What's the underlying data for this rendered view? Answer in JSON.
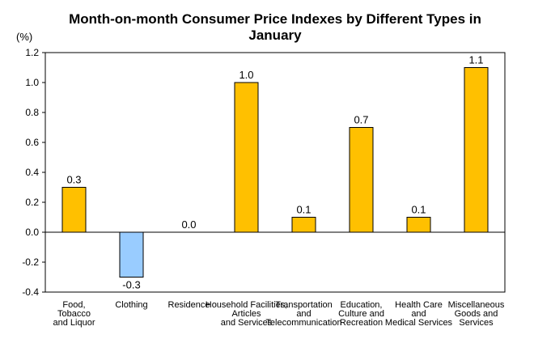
{
  "chart_data": {
    "type": "bar",
    "title": "Month-on-month Consumer Price Indexes by Different Types in\nJanuary",
    "ylabel": "(%)",
    "xlabel": "",
    "ylim": [
      -0.4,
      1.2
    ],
    "yticks": [
      "1.2",
      "1.0",
      "0.8",
      "0.6",
      "0.4",
      "0.2",
      "0.0",
      "-0.2",
      "-0.4"
    ],
    "categories": [
      "Food,\nTobacco\nand Liquor",
      "Clothing",
      "Residence",
      "Household Facilities,\nArticles\nand Services",
      "Transportation\nand\nTelecommunication",
      "Education,\nCulture and\nRecreation",
      "Health Care\nand\nMedical Services",
      "Miscellaneous\nGoods and\nServices"
    ],
    "values": [
      0.3,
      -0.3,
      0.0,
      1.0,
      0.1,
      0.7,
      0.1,
      1.1
    ],
    "data_labels": [
      "0.3",
      "-0.3",
      "0.0",
      "1.0",
      "0.1",
      "0.7",
      "0.1",
      "1.1"
    ],
    "grid": false,
    "colors": {
      "positive": "#FFC000",
      "negative": "#99CCFF",
      "outline": "#000000"
    }
  }
}
